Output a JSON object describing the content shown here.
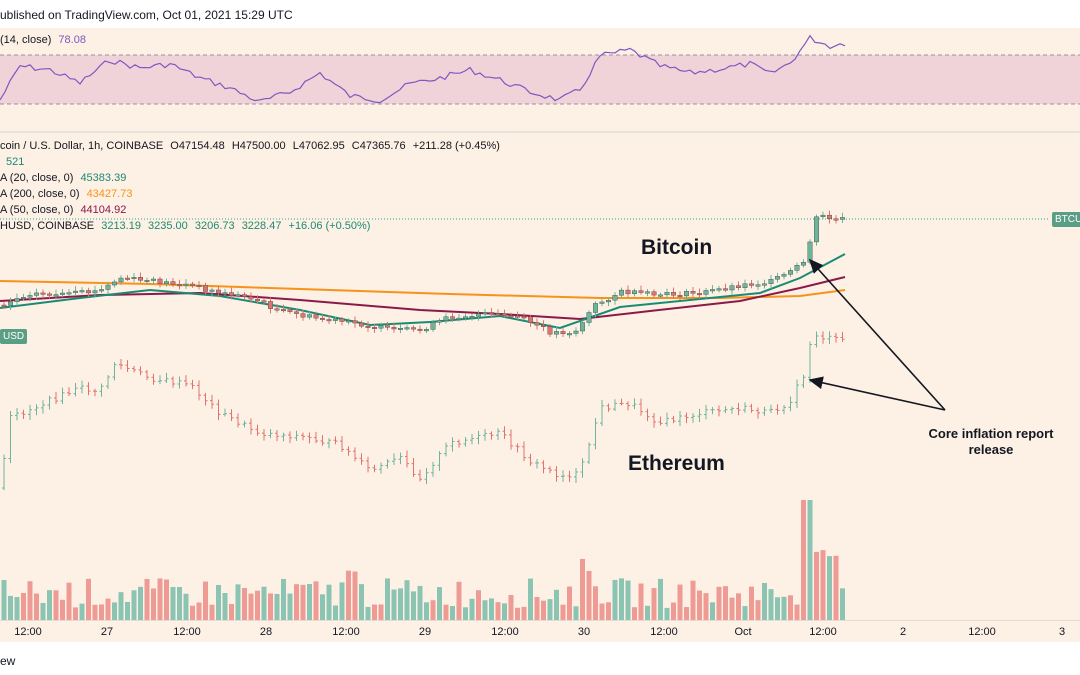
{
  "header": {
    "published": "ublished on TradingView.com, Oct 01, 2021 15:29 UTC"
  },
  "rsi": {
    "label": "(14, close)",
    "value": "78.08",
    "band_color": "#e9c9d4",
    "line_color": "#7e57c2"
  },
  "legend": {
    "main": {
      "title": "coin / U.S. Dollar, 1h, COINBASE",
      "o_label": "O",
      "o": "47154.48",
      "h_label": "H",
      "h": "47500.00",
      "l_label": "L",
      "l": "47062.95",
      "c_label": "C",
      "c": "47365.76",
      "change": "+211.28 (+0.45%)"
    },
    "vol": "521",
    "ma20": {
      "label": "A (20, close, 0)",
      "value": "45383.39",
      "color": "#1b8a74"
    },
    "ma200": {
      "label": "A (200, close, 0)",
      "value": "43427.73",
      "color": "#f7931a"
    },
    "ma50": {
      "label": "A (50, close, 0)",
      "value": "44104.92",
      "color": "#8b1a4a"
    },
    "eth": {
      "title": "HUSD, COINBASE",
      "o": "3213.19",
      "h": "3235.00",
      "l": "3206.73",
      "c": "3228.47",
      "change": "+16.06 (+0.50%)"
    }
  },
  "annotations": {
    "bitcoin": "Bitcoin",
    "ethereum": "Ethereum",
    "core_line1": "Core inflation report",
    "core_line2": "release"
  },
  "tags": {
    "btc": "BTCU",
    "eth": "USD"
  },
  "time_axis": {
    "ticks": [
      "12:00",
      "27",
      "12:00",
      "28",
      "12:00",
      "29",
      "12:00",
      "30",
      "12:00",
      "Oct",
      "12:00",
      "2",
      "12:00",
      "3"
    ]
  },
  "footer": {
    "text": "ew"
  },
  "colors": {
    "up": "#6fb39b",
    "down": "#e0736e",
    "vol_up": "#8cc4b4",
    "vol_down": "#ee9b96",
    "background": "#fdf0e4"
  }
}
